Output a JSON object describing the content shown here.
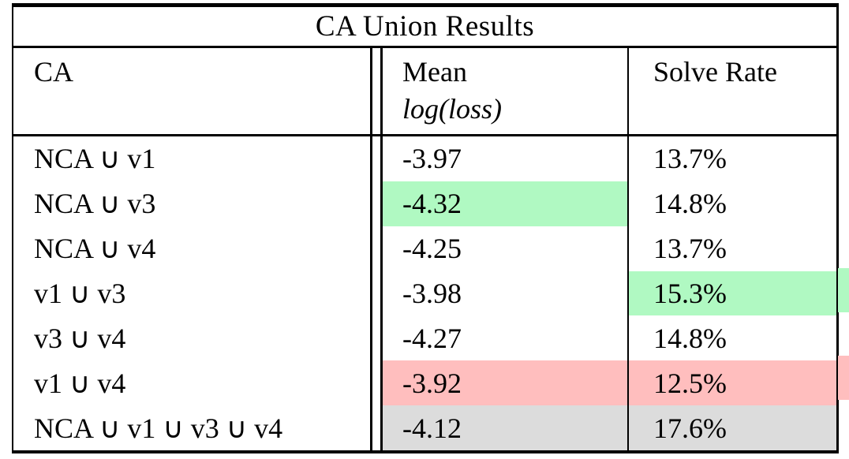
{
  "table": {
    "title": "CA Union Results",
    "columns": [
      {
        "label": "CA",
        "sublabel": ""
      },
      {
        "label": "Mean",
        "sublabel": "log(loss)"
      },
      {
        "label": "Solve Rate",
        "sublabel": ""
      }
    ],
    "rows": [
      {
        "ca": "NCA ∪ v1",
        "mean": "-3.97",
        "solve_rate": "13.7%",
        "mean_highlight": "",
        "solve_highlight": ""
      },
      {
        "ca": "NCA ∪ v3",
        "mean": "-4.32",
        "solve_rate": "14.8%",
        "mean_highlight": "green",
        "solve_highlight": ""
      },
      {
        "ca": "NCA ∪ v4",
        "mean": "-4.25",
        "solve_rate": "13.7%",
        "mean_highlight": "",
        "solve_highlight": ""
      },
      {
        "ca": "v1 ∪ v3",
        "mean": "-3.98",
        "solve_rate": "15.3%",
        "mean_highlight": "",
        "solve_highlight": "green"
      },
      {
        "ca": "v3 ∪ v4",
        "mean": "-4.27",
        "solve_rate": "14.8%",
        "mean_highlight": "",
        "solve_highlight": ""
      },
      {
        "ca": "v1 ∪ v4",
        "mean": "-3.92",
        "solve_rate": "12.5%",
        "mean_highlight": "red",
        "solve_highlight": "red"
      },
      {
        "ca": "NCA ∪ v1 ∪ v3 ∪ v4",
        "mean": "-4.12",
        "solve_rate": "17.6%",
        "mean_highlight": "gray",
        "solve_highlight": "gray"
      }
    ],
    "highlight_colors": {
      "green": "#b0f9c2",
      "red": "#ffbebe",
      "gray": "#dcdcdc"
    },
    "border_color": "#000000",
    "background_color": "#ffffff"
  }
}
